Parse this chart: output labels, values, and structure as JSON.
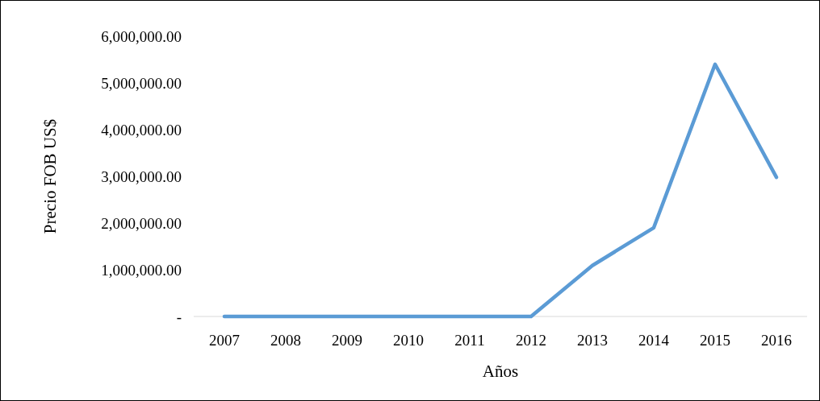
{
  "chart_data": {
    "type": "line",
    "xlabel": "Años",
    "ylabel": "Precio FOB US$",
    "categories": [
      "2007",
      "2008",
      "2009",
      "2010",
      "2011",
      "2012",
      "2013",
      "2014",
      "2015",
      "2016"
    ],
    "series": [
      {
        "color": "#5b9bd5",
        "values": [
          0,
          0,
          0,
          0,
          0,
          0,
          1090000,
          1900000,
          5400000,
          2980000
        ]
      }
    ],
    "ylim": [
      0,
      6000000
    ],
    "yticks": [
      {
        "value": 0,
        "label": "-"
      },
      {
        "value": 1000000,
        "label": "1,000,000.00"
      },
      {
        "value": 2000000,
        "label": "2,000,000.00"
      },
      {
        "value": 3000000,
        "label": "3,000,000.00"
      },
      {
        "value": 4000000,
        "label": "4,000,000.00"
      },
      {
        "value": 5000000,
        "label": "5,000,000.00"
      },
      {
        "value": 6000000,
        "label": "6,000,000.00"
      }
    ],
    "grid": false,
    "marker": "none",
    "line_style": "solid"
  }
}
